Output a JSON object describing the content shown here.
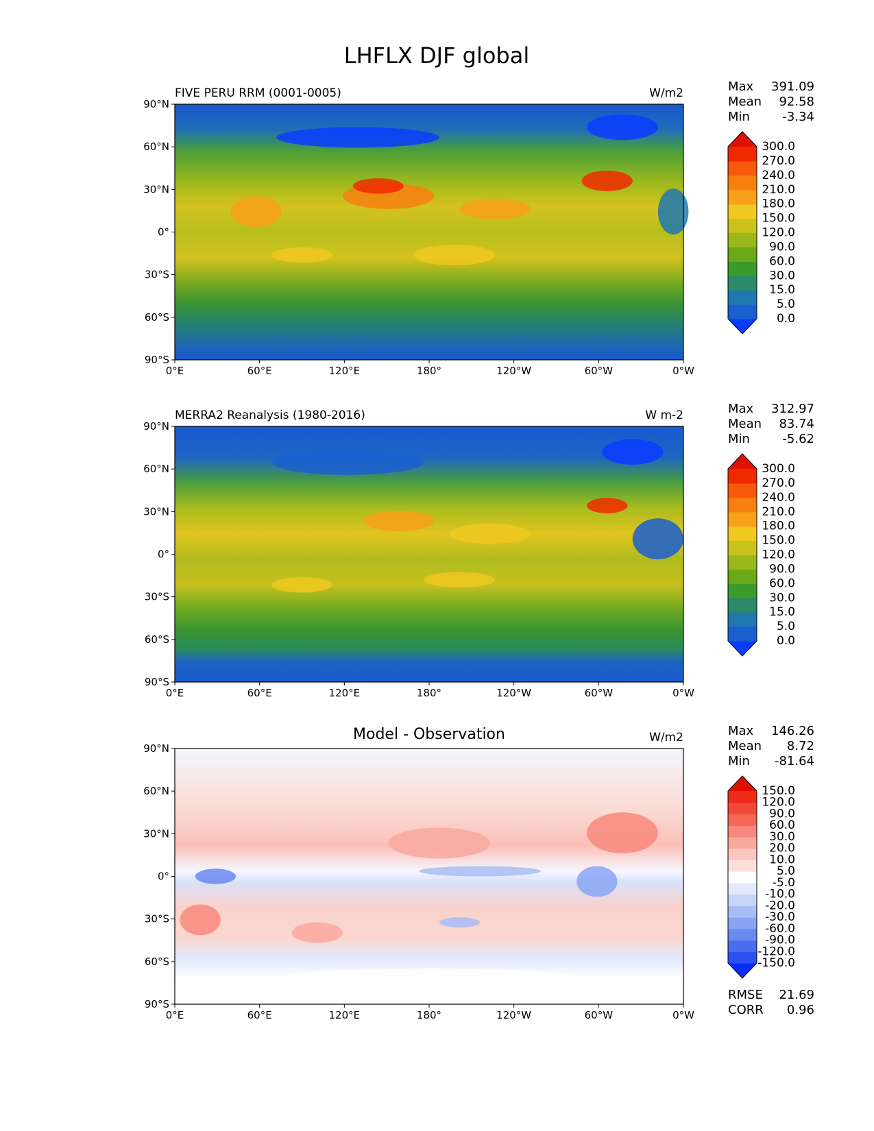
{
  "chart_data": {
    "type": "heatmap",
    "title": "LHFLX DJF global",
    "x_ticks": [
      "0°E",
      "60°E",
      "120°E",
      "180°",
      "120°W",
      "60°W",
      "0°W"
    ],
    "y_ticks": [
      "90°N",
      "60°N",
      "30°N",
      "0°",
      "30°S",
      "60°S",
      "90°S"
    ],
    "x_range": [
      0,
      360
    ],
    "y_range": [
      -90,
      90
    ],
    "panels": [
      {
        "id": "model",
        "title_left": "FIVE PERU RRM (0001-0005)",
        "title_center": "",
        "units": "W/m2",
        "stats": [
          {
            "label": "Max",
            "value": "391.09"
          },
          {
            "label": "Mean",
            "value": "92.58"
          },
          {
            "label": "Min",
            "value": "-3.34"
          }
        ],
        "levels": [
          "0.0",
          "5.0",
          "15.0",
          "30.0",
          "60.0",
          "90.0",
          "120.0",
          "150.0",
          "180.0",
          "210.0",
          "240.0",
          "270.0",
          "300.0"
        ],
        "colors": [
          "#0a3cff",
          "#1a5fd0",
          "#1f78b0",
          "#2a8a6a",
          "#3a9a2a",
          "#6aaa1a",
          "#9ab81a",
          "#c8c21a",
          "#f0c820",
          "#f8a018",
          "#f88010",
          "#f85a0a",
          "#f02a00",
          "#e01000"
        ],
        "metrics": []
      },
      {
        "id": "obs",
        "title_left": "MERRA2 Reanalysis (1980-2016)",
        "title_center": "",
        "units": "W m-2",
        "stats": [
          {
            "label": "Max",
            "value": "312.97"
          },
          {
            "label": "Mean",
            "value": "83.74"
          },
          {
            "label": "Min",
            "value": "-5.62"
          }
        ],
        "levels": [
          "0.0",
          "5.0",
          "15.0",
          "30.0",
          "60.0",
          "90.0",
          "120.0",
          "150.0",
          "180.0",
          "210.0",
          "240.0",
          "270.0",
          "300.0"
        ],
        "colors": [
          "#0a3cff",
          "#1a5fd0",
          "#1f78b0",
          "#2a8a6a",
          "#3a9a2a",
          "#6aaa1a",
          "#9ab81a",
          "#c8c21a",
          "#f0c820",
          "#f8a018",
          "#f88010",
          "#f85a0a",
          "#f02a00",
          "#e01000"
        ],
        "metrics": []
      },
      {
        "id": "diff",
        "title_left": "",
        "title_center": "Model - Observation",
        "units": "W/m2",
        "stats": [
          {
            "label": "Max",
            "value": "146.26"
          },
          {
            "label": "Mean",
            "value": "8.72"
          },
          {
            "label": "Min",
            "value": "-81.64"
          }
        ],
        "levels": [
          "-150.0",
          "-120.0",
          "-90.0",
          "-60.0",
          "-30.0",
          "-20.0",
          "-10.0",
          "-5.0",
          "5.0",
          "10.0",
          "20.0",
          "30.0",
          "60.0",
          "90.0",
          "120.0",
          "150.0"
        ],
        "colors": [
          "#0a2aff",
          "#2a50f0",
          "#4a6ef0",
          "#6a8af0",
          "#8aa4f4",
          "#a8bcf6",
          "#c6d4fa",
          "#e2eafc",
          "#ffffff",
          "#fde0dc",
          "#fcc6c0",
          "#fba89e",
          "#f8887c",
          "#f56858",
          "#f24a3a",
          "#ef2a1a",
          "#e01000"
        ],
        "metrics": [
          {
            "label": "RMSE",
            "value": "21.69"
          },
          {
            "label": "CORR",
            "value": "0.96"
          }
        ]
      }
    ]
  }
}
